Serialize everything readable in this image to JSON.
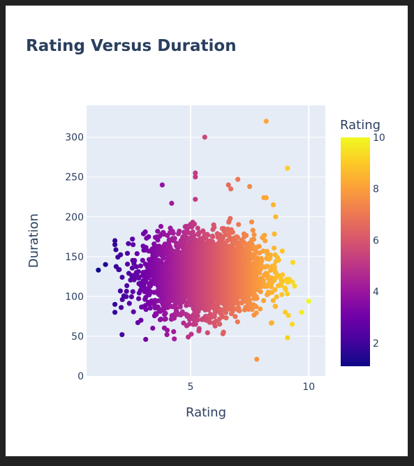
{
  "chart_data": {
    "type": "scatter",
    "title": "Rating Versus Duration",
    "xlabel": "Rating",
    "ylabel": "Duration",
    "xlim": [
      0.6,
      10.7
    ],
    "ylim": [
      0,
      340
    ],
    "x_ticks": [
      5,
      10
    ],
    "y_ticks": [
      0,
      50,
      100,
      150,
      200,
      250,
      300
    ],
    "grid": true,
    "colorbar": {
      "title": "Rating",
      "range": [
        1.1,
        10
      ],
      "ticks": [
        2,
        4,
        6,
        8,
        10
      ],
      "colorscale": [
        "#0d0887",
        "#46039f",
        "#7201a8",
        "#9c179e",
        "#bd3786",
        "#d8576b",
        "#ed7953",
        "#fb9f3a",
        "#fdca26",
        "#f0f921"
      ]
    },
    "cluster": {
      "description_points": "dense cloud of movies",
      "x_range": [
        1.1,
        10.0
      ],
      "y_range": [
        20,
        320
      ],
      "core_x_range": [
        2.5,
        8.5
      ],
      "core_y_range": [
        80,
        190
      ]
    },
    "notable_points": [
      {
        "x": 8.2,
        "y": 320
      },
      {
        "x": 5.6,
        "y": 300
      },
      {
        "x": 9.1,
        "y": 261
      },
      {
        "x": 5.2,
        "y": 255
      },
      {
        "x": 5.2,
        "y": 250
      },
      {
        "x": 7.0,
        "y": 247
      },
      {
        "x": 3.8,
        "y": 240
      },
      {
        "x": 6.6,
        "y": 240
      },
      {
        "x": 7.5,
        "y": 238
      },
      {
        "x": 6.7,
        "y": 235
      },
      {
        "x": 8.1,
        "y": 224
      },
      {
        "x": 8.2,
        "y": 224
      },
      {
        "x": 4.2,
        "y": 217
      },
      {
        "x": 5.2,
        "y": 222
      },
      {
        "x": 8.5,
        "y": 215
      },
      {
        "x": 8.6,
        "y": 200
      },
      {
        "x": 10.0,
        "y": 94
      },
      {
        "x": 9.7,
        "y": 80
      },
      {
        "x": 9.4,
        "y": 113
      },
      {
        "x": 1.1,
        "y": 133
      },
      {
        "x": 1.4,
        "y": 140
      },
      {
        "x": 1.8,
        "y": 170
      },
      {
        "x": 1.8,
        "y": 165
      },
      {
        "x": 1.8,
        "y": 90
      },
      {
        "x": 2.1,
        "y": 52
      },
      {
        "x": 3.1,
        "y": 46
      },
      {
        "x": 7.8,
        "y": 21
      },
      {
        "x": 9.1,
        "y": 48
      },
      {
        "x": 9.3,
        "y": 65
      },
      {
        "x": 4.0,
        "y": 52
      },
      {
        "x": 4.9,
        "y": 49
      },
      {
        "x": 3.4,
        "y": 60
      },
      {
        "x": 2.9,
        "y": 70
      },
      {
        "x": 1.8,
        "y": 80
      }
    ]
  }
}
